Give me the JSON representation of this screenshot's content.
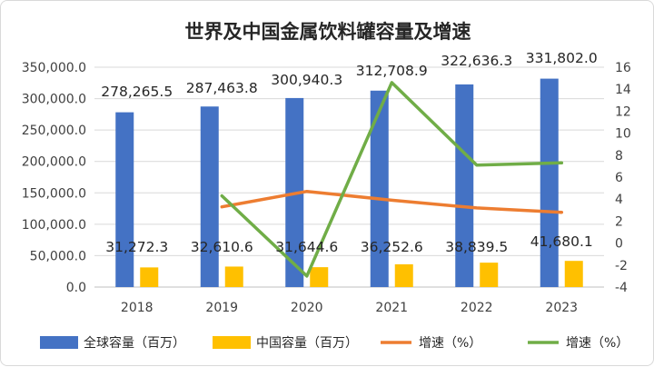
{
  "chart_data": {
    "type": "bar",
    "title": "世界及中国金属饮料罐容量及增速",
    "categories": [
      "2018",
      "2019",
      "2020",
      "2021",
      "2022",
      "2023"
    ],
    "series": [
      {
        "name": "全球容量（百万）",
        "kind": "bar",
        "axis": "left",
        "color": "#4472C4",
        "values": [
          278265.5,
          287463.8,
          300940.3,
          312708.9,
          322636.3,
          331802.0
        ],
        "labels": [
          "278,265.5",
          "287,463.8",
          "300,940.3",
          "312,708.9",
          "322,636.3",
          "331,802.0"
        ]
      },
      {
        "name": "中国容量（百万）",
        "kind": "bar",
        "axis": "left",
        "color": "#FFC000",
        "values": [
          31272.3,
          32610.6,
          31644.6,
          36252.6,
          38839.5,
          41680.1
        ],
        "labels": [
          "31,272.3",
          "32,610.6",
          "31,644.6",
          "36,252.6",
          "38,839.5",
          "41,680.1"
        ]
      },
      {
        "name": "增速（%）",
        "kind": "line",
        "axis": "right",
        "color": "#ED7D31",
        "values": [
          null,
          3.3,
          4.7,
          3.9,
          3.2,
          2.8
        ]
      },
      {
        "name": "增速（%）",
        "kind": "line",
        "axis": "right",
        "color": "#70AD47",
        "values": [
          null,
          4.3,
          -3.0,
          14.6,
          7.1,
          7.3
        ]
      }
    ],
    "y_left": {
      "min": 0,
      "max": 350000,
      "step": 50000,
      "tick_labels": [
        "0.0",
        "50,000.0",
        "100,000.0",
        "150,000.0",
        "200,000.0",
        "250,000.0",
        "300,000.0",
        "350,000.0"
      ]
    },
    "y_right": {
      "min": -4,
      "max": 16,
      "step": 2,
      "tick_labels": [
        "-4",
        "-2",
        "0",
        "2",
        "4",
        "6",
        "8",
        "10",
        "12",
        "14",
        "16"
      ]
    },
    "grid": true,
    "legend_position": "bottom"
  }
}
